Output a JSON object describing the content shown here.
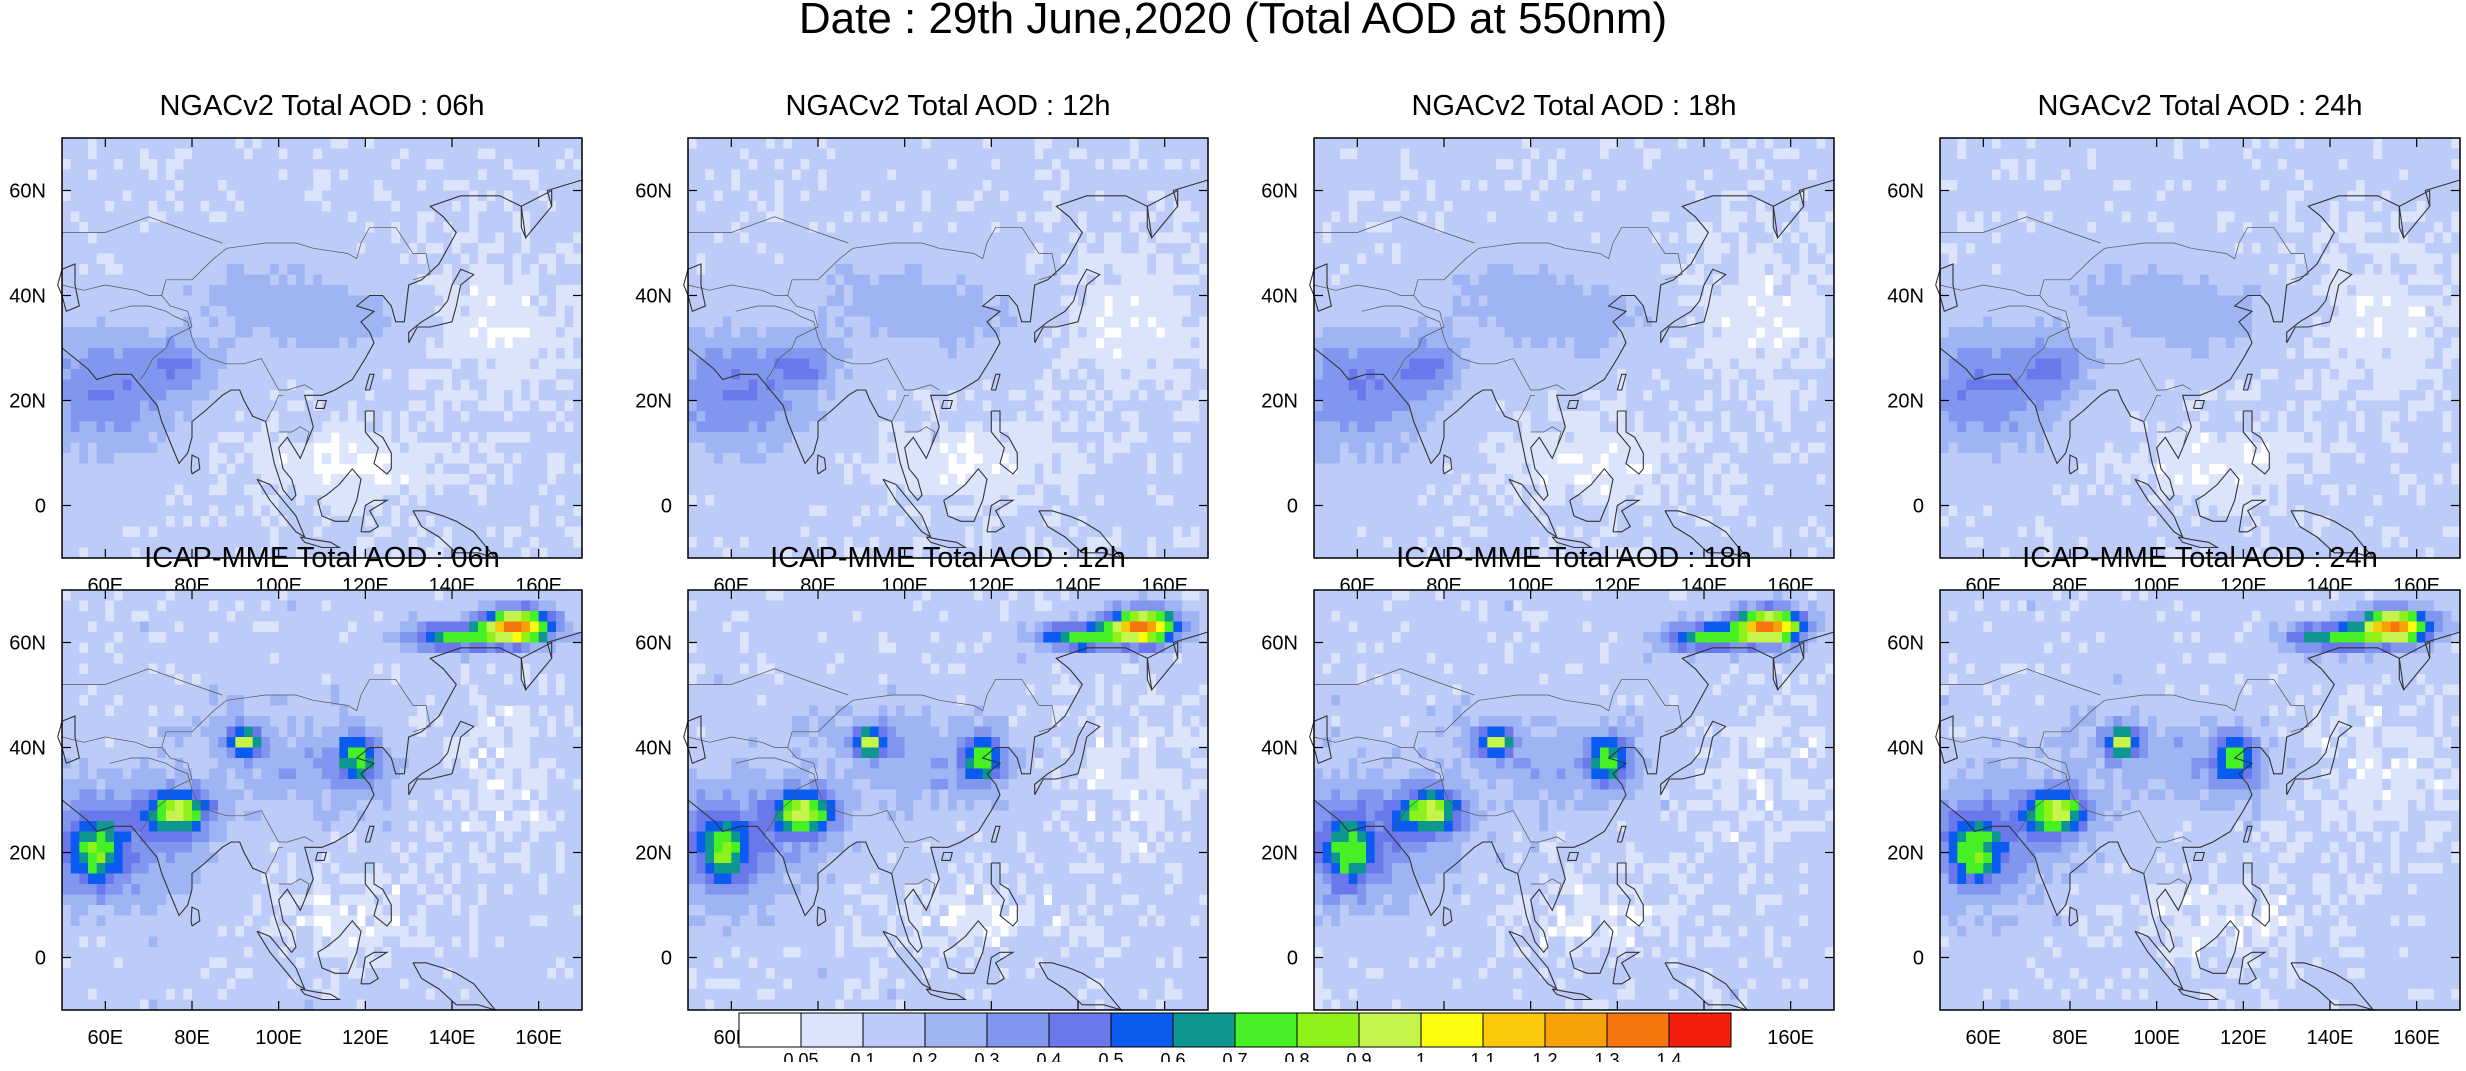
{
  "figure": {
    "title": "Date : 29th June,2020 (Total AOD at 550nm)"
  },
  "axes": {
    "lon_ticks": [
      "60E",
      "80E",
      "100E",
      "120E",
      "140E",
      "160E"
    ],
    "lon_tick_values": [
      60,
      80,
      100,
      120,
      140,
      160
    ],
    "lat_ticks": [
      "60N",
      "40N",
      "20N",
      "0"
    ],
    "lat_tick_values": [
      60,
      40,
      20,
      0
    ],
    "lon_range": [
      50,
      170
    ],
    "lat_range": [
      -10,
      70
    ]
  },
  "panels": [
    {
      "title": "NGACv2 Total AOD : 06h",
      "model": "NGACv2",
      "lead": "06h",
      "seed": 11,
      "red": 0
    },
    {
      "title": "NGACv2 Total AOD : 12h",
      "model": "NGACv2",
      "lead": "12h",
      "seed": 23,
      "red": 0
    },
    {
      "title": "NGACv2 Total AOD : 18h",
      "model": "NGACv2",
      "lead": "18h",
      "seed": 37,
      "red": 0
    },
    {
      "title": "NGACv2 Total AOD : 24h",
      "model": "NGACv2",
      "lead": "24h",
      "seed": 41,
      "red": 0
    },
    {
      "title": "ICAP-MME Total AOD : 06h",
      "model": "ICAP-MME",
      "lead": "06h",
      "seed": 53,
      "red": 1
    },
    {
      "title": "ICAP-MME Total AOD : 12h",
      "model": "ICAP-MME",
      "lead": "12h",
      "seed": 67,
      "red": 1
    },
    {
      "title": "ICAP-MME Total AOD : 18h",
      "model": "ICAP-MME",
      "lead": "18h",
      "seed": 79,
      "red": 1
    },
    {
      "title": "ICAP-MME Total AOD : 24h",
      "model": "ICAP-MME",
      "lead": "24h",
      "seed": 83,
      "red": 1
    }
  ],
  "colorbar": {
    "levels": [
      "0.05",
      "0.1",
      "0.2",
      "0.3",
      "0.4",
      "0.5",
      "0.6",
      "0.7",
      "0.8",
      "0.9",
      "1",
      "1.1",
      "1.2",
      "1.3",
      "1.4"
    ],
    "colors": [
      "#ffffff",
      "#dce4fb",
      "#bccbf7",
      "#9fb4f3",
      "#8197ef",
      "#6a78eb",
      "#0a5cf0",
      "#0e9690",
      "#45f025",
      "#8ef21a",
      "#c5f54a",
      "#fcfc0c",
      "#fbc80a",
      "#f8a008",
      "#f6760c",
      "#f41e0c"
    ]
  },
  "chart_data": {
    "type": "heatmap",
    "title": "Date : 29th June,2020 (Total AOD at 550nm)",
    "variable": "Total AOD at 550nm",
    "date": "29th June,2020",
    "panels": [
      "NGACv2 Total AOD : 06h",
      "NGACv2 Total AOD : 12h",
      "NGACv2 Total AOD : 18h",
      "NGACv2 Total AOD : 24h",
      "ICAP-MME Total AOD : 06h",
      "ICAP-MME Total AOD : 12h",
      "ICAP-MME Total AOD : 18h",
      "ICAP-MME Total AOD : 24h"
    ],
    "x_ticks": [
      "60E",
      "80E",
      "100E",
      "120E",
      "140E",
      "160E"
    ],
    "y_ticks": [
      "60N",
      "40N",
      "20N",
      "0"
    ],
    "xlim": [
      50,
      170
    ],
    "ylim": [
      -10,
      70
    ],
    "colorbar_levels": [
      0.05,
      0.1,
      0.2,
      0.3,
      0.4,
      0.5,
      0.6,
      0.7,
      0.8,
      0.9,
      1,
      1.1,
      1.2,
      1.3,
      1.4
    ],
    "grid": false
  }
}
